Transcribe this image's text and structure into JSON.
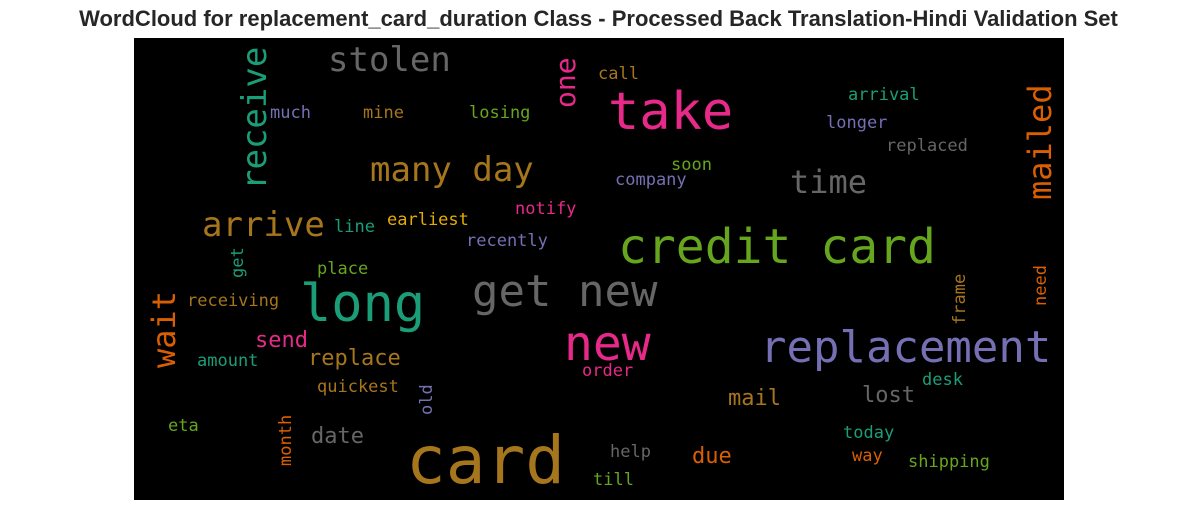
{
  "title": "WordCloud for replacement_card_duration Class - Processed Back Translation-Hindi Validation Set",
  "colors": {
    "background": "#000000",
    "orange_brown": "#a6761d",
    "green": "#1b9e77",
    "pink": "#e7298a",
    "olive_green": "#66a61e",
    "gray": "#666666",
    "purple": "#7570b3",
    "orange": "#d95f02",
    "mustard": "#e6ab02"
  },
  "words": {
    "card": "card",
    "credit_card": "credit card",
    "long": "long",
    "get_new": "get new",
    "new": "new",
    "replacement": "replacement",
    "take": "take",
    "stolen": "stolen",
    "receive": "receive",
    "many_day": "many day",
    "arrive": "arrive",
    "time": "time",
    "mailed": "mailed",
    "wait": "wait",
    "one": "one",
    "call": "call",
    "much": "much",
    "mine": "mine",
    "losing": "losing",
    "arrival": "arrival",
    "longer": "longer",
    "replaced": "replaced",
    "soon": "soon",
    "company": "company",
    "line": "line",
    "earliest": "earliest",
    "notify": "notify",
    "recently": "recently",
    "get": "get",
    "place": "place",
    "receiving": "receiving",
    "send": "send",
    "replace": "replace",
    "amount": "amount",
    "quickest": "quickest",
    "order": "order",
    "old": "old",
    "mail": "mail",
    "lost": "lost",
    "desk": "desk",
    "frame": "frame",
    "need": "need",
    "eta": "eta",
    "month": "month",
    "date": "date",
    "help": "help",
    "due": "due",
    "today": "today",
    "way": "way",
    "shipping": "shipping",
    "till": "till"
  }
}
